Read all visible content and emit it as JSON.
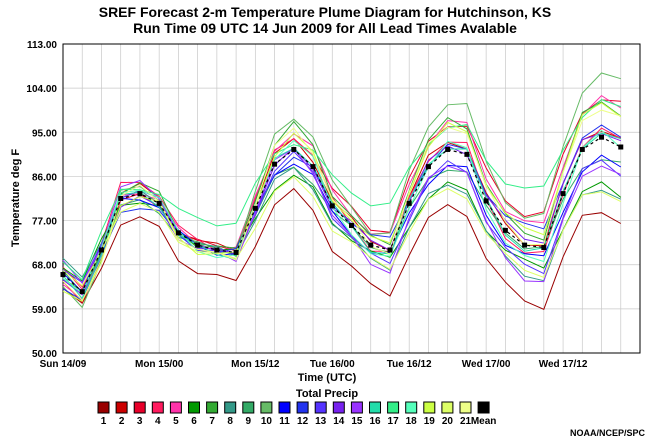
{
  "chart_data": {
    "type": "line",
    "title": "SREF Forecast 2-m Temperature Plume Diagram for Hutchinson, KS",
    "subtitle": "Run Time 09 UTC 14 Jun 2009 for All Lead Times Avalable",
    "xlabel": "Time (UTC)",
    "ylabel": "Temperature deg F",
    "ylim": [
      50,
      113
    ],
    "yticks": [
      "50.00",
      "59.00",
      "68.00",
      "77.00",
      "86.00",
      "95.00",
      "104.00",
      "113.00"
    ],
    "xlim": [
      0,
      30
    ],
    "xtick_labels": [
      {
        "x": 0,
        "label": "Sun 14/09"
      },
      {
        "x": 5,
        "label": "Mon 15/00"
      },
      {
        "x": 10,
        "label": "Mon 15/12"
      },
      {
        "x": 14,
        "label": "Tue 16/00"
      },
      {
        "x": 18,
        "label": "Tue 16/12"
      },
      {
        "x": 22,
        "label": "Wed 17/00"
      },
      {
        "x": 26,
        "label": "Wed 17/12"
      }
    ],
    "grid": true,
    "mean": [
      66,
      62.5,
      71,
      81.5,
      82.5,
      80.5,
      74.5,
      72,
      71,
      70.5,
      79.5,
      88.5,
      91.5,
      88,
      80,
      76,
      72,
      71,
      80.5,
      88,
      91.5,
      90.5,
      81,
      75,
      72,
      71.5,
      82.5,
      91.5,
      94,
      92
    ],
    "series_colors": [
      "#990000",
      "#cc0000",
      "#e8002a",
      "#ff1a5e",
      "#ff33aa",
      "#009900",
      "#33aa33",
      "#339988",
      "#33aa66",
      "#66bb66",
      "#0000ff",
      "#2233ee",
      "#5533ff",
      "#7722ee",
      "#9933ff",
      "#22ddaa",
      "#33ee88",
      "#55ffbb",
      "#ccff44",
      "#ddff66",
      "#eeff88"
    ],
    "legend_title": "Total Precip",
    "legend": [
      {
        "label": "1",
        "color": "#990000"
      },
      {
        "label": "2",
        "color": "#cc0000"
      },
      {
        "label": "3",
        "color": "#e8002a"
      },
      {
        "label": "4",
        "color": "#ff1a5e"
      },
      {
        "label": "5",
        "color": "#ff33aa"
      },
      {
        "label": "6",
        "color": "#009900"
      },
      {
        "label": "7",
        "color": "#33aa33"
      },
      {
        "label": "8",
        "color": "#339988"
      },
      {
        "label": "9",
        "color": "#33aa66"
      },
      {
        "label": "10",
        "color": "#66bb66"
      },
      {
        "label": "11",
        "color": "#0000ff"
      },
      {
        "label": "12",
        "color": "#2233ee"
      },
      {
        "label": "13",
        "color": "#5533ff"
      },
      {
        "label": "14",
        "color": "#7722ee"
      },
      {
        "label": "15",
        "color": "#9933ff"
      },
      {
        "label": "16",
        "color": "#22ddaa"
      },
      {
        "label": "17",
        "color": "#33ee88"
      },
      {
        "label": "18",
        "color": "#55ffbb"
      },
      {
        "label": "19",
        "color": "#ccff44"
      },
      {
        "label": "20",
        "color": "#ddff66"
      },
      {
        "label": "21",
        "color": "#eeff88"
      },
      {
        "label": "Mean",
        "color": "#000000"
      }
    ],
    "credit": "NOAA/NCEP/SPC"
  }
}
